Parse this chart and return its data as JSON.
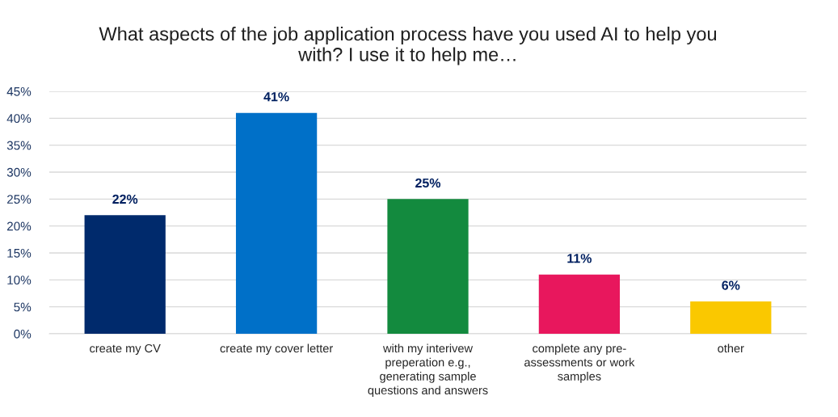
{
  "chart_data": {
    "type": "bar",
    "title": "What aspects of the job application process have you used AI to help you\nwith? I use it to help me…",
    "categories": [
      "create my CV",
      "create my cover letter",
      "with my interivew\npreperation e.g.,\ngenerating sample\nquestions and answers",
      "complete any pre-\nassessments or work\nsamples",
      "other"
    ],
    "values": [
      22,
      41,
      25,
      11,
      6
    ],
    "colors": [
      "#002a6c",
      "#0070c8",
      "#138a3e",
      "#e8175d",
      "#fac800"
    ],
    "value_labels": [
      "22%",
      "41%",
      "25%",
      "11%",
      "6%"
    ],
    "ylim": [
      0,
      45
    ],
    "yticks": [
      {
        "value": 0,
        "label": "0%"
      },
      {
        "value": 5,
        "label": "5%"
      },
      {
        "value": 10,
        "label": "10%"
      },
      {
        "value": 15,
        "label": "15%"
      },
      {
        "value": 20,
        "label": "20%"
      },
      {
        "value": 25,
        "label": "25%"
      },
      {
        "value": 30,
        "label": "30%"
      },
      {
        "value": 35,
        "label": "35%"
      },
      {
        "value": 40,
        "label": "40%"
      },
      {
        "value": 45,
        "label": "45%"
      }
    ],
    "grid": "y",
    "legend": false
  }
}
